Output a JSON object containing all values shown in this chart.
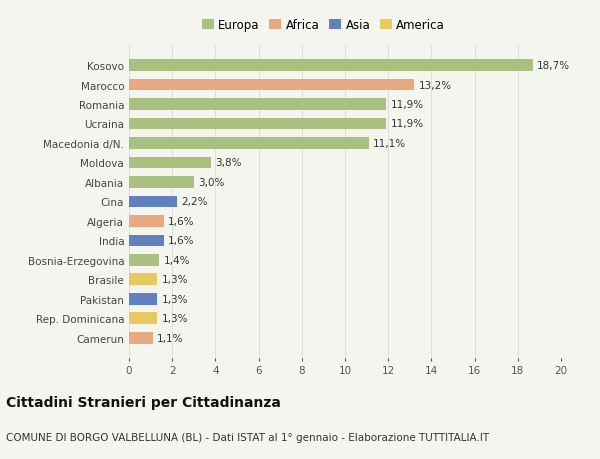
{
  "countries": [
    "Kosovo",
    "Marocco",
    "Romania",
    "Ucraina",
    "Macedonia d/N.",
    "Moldova",
    "Albania",
    "Cina",
    "Algeria",
    "India",
    "Bosnia-Erzegovina",
    "Brasile",
    "Pakistan",
    "Rep. Dominicana",
    "Camerun"
  ],
  "values": [
    18.7,
    13.2,
    11.9,
    11.9,
    11.1,
    3.8,
    3.0,
    2.2,
    1.6,
    1.6,
    1.4,
    1.3,
    1.3,
    1.3,
    1.1
  ],
  "labels": [
    "18,7%",
    "13,2%",
    "11,9%",
    "11,9%",
    "11,1%",
    "3,8%",
    "3,0%",
    "2,2%",
    "1,6%",
    "1,6%",
    "1,4%",
    "1,3%",
    "1,3%",
    "1,3%",
    "1,1%"
  ],
  "continents": [
    "Europa",
    "Africa",
    "Europa",
    "Europa",
    "Europa",
    "Europa",
    "Europa",
    "Asia",
    "Africa",
    "Asia",
    "Europa",
    "America",
    "Asia",
    "America",
    "Africa"
  ],
  "continent_colors": {
    "Europa": "#a8c080",
    "Africa": "#e8a880",
    "Asia": "#6080c0",
    "America": "#e8c860"
  },
  "legend_order": [
    "Europa",
    "Africa",
    "Asia",
    "America"
  ],
  "title": "Cittadini Stranieri per Cittadinanza",
  "subtitle": "COMUNE DI BORGO VALBELLUNA (BL) - Dati ISTAT al 1° gennaio - Elaborazione TUTTITALIA.IT",
  "xlim": [
    0,
    20
  ],
  "xticks": [
    0,
    2,
    4,
    6,
    8,
    10,
    12,
    14,
    16,
    18,
    20
  ],
  "background_color": "#f5f5f0",
  "grid_color": "#dddddd",
  "title_fontsize": 10,
  "subtitle_fontsize": 7.5,
  "tick_fontsize": 7.5,
  "label_fontsize": 7.5
}
